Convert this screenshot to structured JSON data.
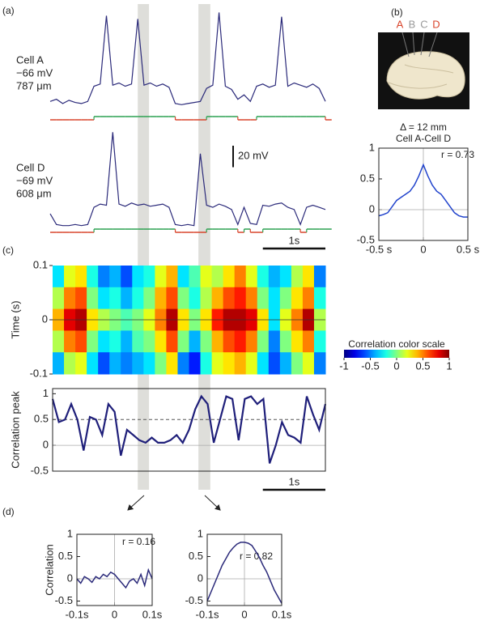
{
  "panel_labels": [
    "(a)",
    "(b)",
    "(c)",
    "(d)"
  ],
  "traces": {
    "x": [
      0,
      0.1,
      0.2,
      0.3,
      0.4,
      0.5,
      0.6,
      0.7,
      0.8,
      0.9,
      1.0,
      1.1,
      1.2,
      1.3,
      1.4,
      1.5,
      1.6,
      1.7,
      1.8,
      1.9,
      2.0,
      2.1,
      2.2,
      2.3,
      2.4,
      2.5,
      2.6,
      2.7,
      2.8,
      2.9,
      3.0,
      3.1,
      3.2,
      3.3,
      3.4,
      3.5,
      3.6,
      3.7,
      3.8,
      3.9,
      4.0,
      4.1,
      4.2,
      4.3,
      4.4
    ],
    "color": "#2b2a7a",
    "state_colors": [
      "#d9442b",
      "#2aa050"
    ],
    "cells": [
      {
        "label_lines": [
          "Cell A",
          "−66 mV",
          "787 μm"
        ],
        "ylim": [
          -75,
          22
        ],
        "values": [
          -64,
          -62,
          -66,
          -63,
          -65,
          -66,
          -64,
          -50,
          -48,
          15,
          -49,
          -47,
          -50,
          -48,
          12,
          -49,
          -47,
          -50,
          -48,
          -51,
          -66,
          -67,
          -66,
          -65,
          -64,
          -52,
          -49,
          18,
          -50,
          -53,
          -62,
          -58,
          -64,
          -50,
          -48,
          -51,
          -49,
          14,
          -50,
          -47,
          -49,
          -51,
          -48,
          -52,
          -64
        ],
        "states": [
          0,
          0,
          0,
          0,
          0,
          0,
          0,
          1,
          1,
          1,
          1,
          1,
          1,
          1,
          1,
          1,
          1,
          1,
          1,
          1,
          0,
          0,
          0,
          0,
          0,
          1,
          1,
          1,
          1,
          1,
          0,
          0,
          0,
          1,
          1,
          1,
          1,
          1,
          1,
          1,
          1,
          1,
          1,
          1,
          0
        ]
      },
      {
        "label_lines": [
          "Cell D",
          "−69 mV",
          "608 μm"
        ],
        "ylim": [
          -78,
          20
        ],
        "values": [
          -66,
          -76,
          -77,
          -77,
          -76,
          -77,
          -76,
          -60,
          -57,
          -58,
          10,
          -57,
          -59,
          -56,
          -58,
          -57,
          -59,
          -58,
          -57,
          -60,
          -76,
          -77,
          -76,
          -77,
          -10,
          -58,
          -60,
          -57,
          -59,
          -62,
          -76,
          -60,
          -75,
          -76,
          -58,
          -59,
          -57,
          -56,
          -60,
          -62,
          -76,
          -60,
          -58,
          -60,
          -62
        ],
        "states": [
          0,
          0,
          0,
          0,
          0,
          0,
          0,
          1,
          1,
          1,
          1,
          1,
          1,
          1,
          1,
          1,
          1,
          1,
          1,
          1,
          0,
          0,
          0,
          0,
          0,
          1,
          1,
          1,
          1,
          1,
          0,
          1,
          0,
          0,
          1,
          1,
          1,
          1,
          1,
          1,
          0,
          1,
          1,
          1,
          1
        ]
      }
    ]
  },
  "scale_bars": {
    "voltage": {
      "value": 20,
      "label": "20 mV"
    },
    "time": {
      "value": 1,
      "label": "1s"
    }
  },
  "highlight_windows": [
    [
      1.4,
      1.58
    ],
    [
      2.37,
      2.56
    ]
  ],
  "panel_b": {
    "electrodes": [
      "A",
      "B",
      "C",
      "D"
    ],
    "electrode_colors": [
      "#d9442b",
      "#999999",
      "#999999",
      "#d9442b"
    ],
    "distance_label": "Δ = 12 mm",
    "pair_label": "Cell A-Cell D",
    "r_label": "r = 0.73",
    "chart": {
      "type": "line",
      "color": "#2244cc",
      "zero_lines": true,
      "x": [
        -0.5,
        -0.45,
        -0.4,
        -0.35,
        -0.3,
        -0.25,
        -0.2,
        -0.15,
        -0.1,
        -0.05,
        0,
        0.05,
        0.1,
        0.15,
        0.2,
        0.25,
        0.3,
        0.35,
        0.4,
        0.45,
        0.5
      ],
      "values": [
        -0.1,
        -0.08,
        -0.05,
        0.05,
        0.15,
        0.2,
        0.25,
        0.3,
        0.4,
        0.55,
        0.73,
        0.55,
        0.4,
        0.3,
        0.25,
        0.15,
        0.05,
        -0.05,
        -0.1,
        -0.12,
        -0.12
      ],
      "xlim": [
        -0.5,
        0.5
      ],
      "ylim": [
        -0.5,
        1
      ],
      "xticks": [
        {
          "value": -0.5,
          "label": "-0.5 s"
        },
        0,
        {
          "value": 0.5,
          "label": "0.5 s"
        }
      ],
      "yticks": [
        -0.5,
        0,
        0.5,
        1
      ]
    }
  },
  "panel_c": {
    "heatmap": {
      "type": "heatmap",
      "ylabel": "Time (s)",
      "ylim": [
        -0.1,
        0.1
      ],
      "yticks": [
        -0.1,
        0,
        0.1
      ],
      "colorscale_title": "Correlation color scale",
      "clim": [
        -1,
        1
      ],
      "cticks": [
        -1,
        -0.5,
        0,
        0.5,
        1
      ],
      "values": [
        [
          -0.3,
          0.2,
          0.3,
          -0.2,
          -0.5,
          -0.4,
          -0.6,
          -0.3,
          -0.2,
          0.2,
          0.4,
          -0.3,
          -0.1,
          0.2,
          0.1,
          0.3,
          0.5,
          0.2,
          -0.2,
          -0.4,
          -0.3,
          0.1,
          0.3,
          -0.5
        ],
        [
          0.1,
          0.5,
          0.6,
          0.0,
          -0.3,
          -0.2,
          -0.4,
          -0.2,
          0.0,
          0.4,
          0.6,
          0.0,
          -0.2,
          0.1,
          0.4,
          0.6,
          0.7,
          0.5,
          0.0,
          -0.3,
          0.0,
          0.3,
          0.5,
          -0.2
        ],
        [
          0.4,
          0.8,
          0.9,
          0.3,
          0.1,
          0.0,
          -0.1,
          0.0,
          0.2,
          0.5,
          0.9,
          0.3,
          0.0,
          0.3,
          0.7,
          0.9,
          0.9,
          0.8,
          0.3,
          -0.3,
          0.2,
          0.5,
          0.9,
          0.1
        ],
        [
          0.1,
          0.5,
          0.6,
          0.0,
          -0.3,
          -0.2,
          -0.4,
          -0.1,
          0.0,
          0.3,
          0.6,
          0.0,
          -0.4,
          0.0,
          0.4,
          0.6,
          0.7,
          0.5,
          0.0,
          -0.5,
          0.0,
          0.3,
          0.5,
          -0.2
        ],
        [
          -0.4,
          0.1,
          0.2,
          -0.3,
          -0.6,
          -0.4,
          -0.5,
          -0.4,
          -0.3,
          0.0,
          0.3,
          -0.5,
          -0.7,
          -0.2,
          0.2,
          0.3,
          0.4,
          0.2,
          -0.3,
          -0.6,
          -0.4,
          0.0,
          0.2,
          -0.5
        ]
      ]
    },
    "peak": {
      "type": "line",
      "ylabel": "Correlation peak",
      "color": "#1f1f7a",
      "zero_lines": true,
      "threshold": 0.5,
      "ylim": [
        -0.5,
        1.1
      ],
      "yticks": [
        -0.5,
        0,
        0.5,
        1
      ],
      "values": [
        0.9,
        0.45,
        0.5,
        0.8,
        0.5,
        -0.1,
        0.55,
        0.5,
        0.2,
        0.8,
        0.65,
        -0.2,
        0.3,
        0.2,
        0.1,
        0.05,
        0.15,
        0.05,
        0.05,
        0.1,
        0.2,
        0.05,
        0.3,
        0.7,
        0.95,
        0.8,
        0.05,
        0.5,
        0.95,
        0.9,
        0.1,
        0.9,
        0.95,
        0.8,
        0.9,
        -0.35,
        0.0,
        0.45,
        0.2,
        0.15,
        0.05,
        0.95,
        0.6,
        0.3,
        0.8
      ]
    }
  },
  "panel_d": [
    {
      "type": "line",
      "ylabel": "Correlation",
      "r_label": "r = 0.16",
      "color": "#2b2a7a",
      "zero_lines": true,
      "x": [
        -0.1,
        -0.09,
        -0.08,
        -0.07,
        -0.06,
        -0.05,
        -0.04,
        -0.03,
        -0.02,
        -0.01,
        0,
        0.01,
        0.02,
        0.03,
        0.04,
        0.05,
        0.06,
        0.07,
        0.08,
        0.09,
        0.1
      ],
      "values": [
        0.0,
        -0.1,
        0.05,
        0.0,
        -0.08,
        0.05,
        0.0,
        0.1,
        0.05,
        0.15,
        0.1,
        0.0,
        -0.1,
        -0.2,
        -0.05,
        0.0,
        -0.1,
        0.1,
        -0.15,
        0.2,
        0.0
      ],
      "xlim": [
        -0.1,
        0.1
      ],
      "ylim": [
        -0.6,
        1
      ],
      "xticks": [
        {
          "value": -0.1,
          "label": "-0.1s"
        },
        0,
        {
          "value": 0.1,
          "label": "0.1s"
        }
      ],
      "yticks": [
        -0.5,
        0,
        0.5,
        1
      ]
    },
    {
      "type": "line",
      "r_label": "r = 0.82",
      "color": "#2b2a7a",
      "zero_lines": true,
      "x": [
        -0.1,
        -0.09,
        -0.08,
        -0.07,
        -0.06,
        -0.05,
        -0.04,
        -0.03,
        -0.02,
        -0.01,
        0,
        0.01,
        0.02,
        0.03,
        0.04,
        0.05,
        0.06,
        0.07,
        0.08,
        0.09,
        0.1
      ],
      "values": [
        -0.5,
        -0.3,
        -0.1,
        0.1,
        0.3,
        0.45,
        0.6,
        0.7,
        0.78,
        0.82,
        0.82,
        0.8,
        0.75,
        0.62,
        0.48,
        0.3,
        0.15,
        -0.05,
        -0.25,
        -0.4,
        -0.55
      ],
      "xlim": [
        -0.1,
        0.1
      ],
      "ylim": [
        -0.6,
        1
      ],
      "xticks": [
        {
          "value": -0.1,
          "label": "-0.1s"
        },
        0,
        {
          "value": 0.1,
          "label": "0.1s"
        }
      ],
      "yticks": [
        -0.5,
        0,
        0.5,
        1
      ]
    }
  ]
}
